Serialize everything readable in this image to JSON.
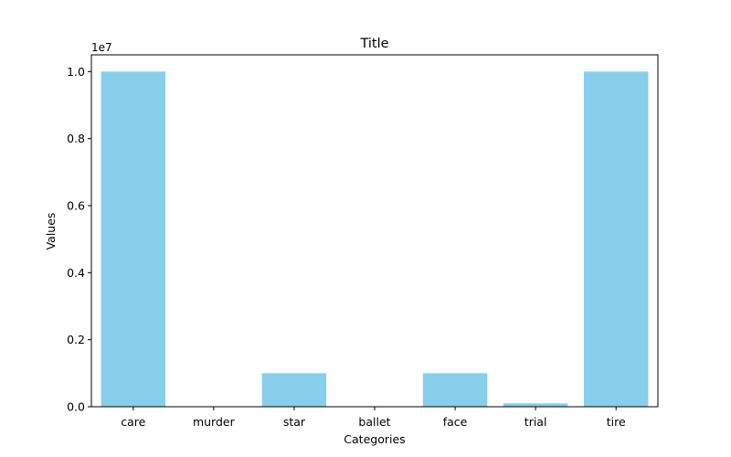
{
  "chart_data": {
    "type": "bar",
    "title": "Title",
    "xlabel": "Categories",
    "ylabel": "Values",
    "y_offset_label": "1e7",
    "categories": [
      "care",
      "murder",
      "star",
      "ballet",
      "face",
      "trial",
      "tire"
    ],
    "values": [
      10000000,
      10,
      1000000,
      10,
      1000000,
      100000,
      10000000
    ],
    "ylim": [
      0,
      10500000
    ],
    "yticks": [
      0,
      2000000,
      4000000,
      6000000,
      8000000,
      10000000
    ],
    "ytick_labels": [
      "0.0",
      "0.2",
      "0.4",
      "0.6",
      "0.8",
      "1.0"
    ],
    "bar_color": "#87ceeb",
    "grid": false,
    "legend": false
  }
}
